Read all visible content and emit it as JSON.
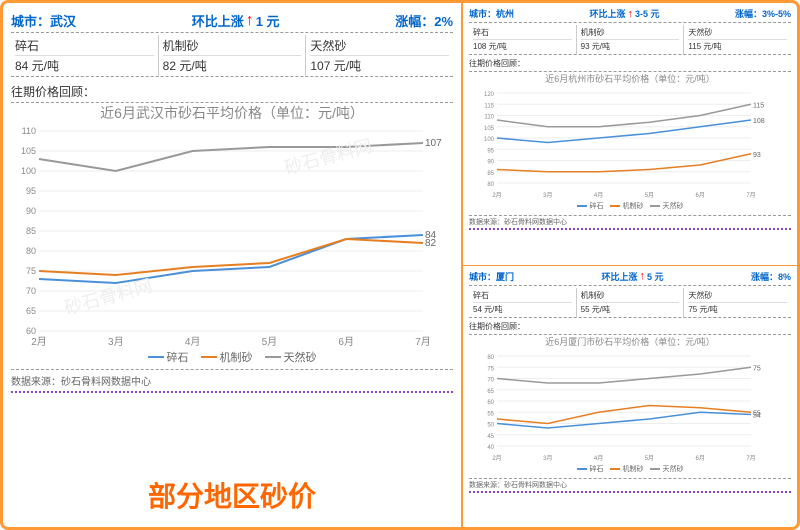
{
  "bigTitle": "部分地区砂价",
  "watermark": "砂石骨料网",
  "labels": {
    "city": "城市：",
    "change": "环比上涨",
    "rate": "涨幅：",
    "history": "往期价格回顾：",
    "source": "数据来源：砂石骨料网数据中心",
    "unit": "元/吨"
  },
  "months": [
    "2月",
    "3月",
    "4月",
    "5月",
    "6月",
    "7月"
  ],
  "series": [
    {
      "name": "碎石",
      "color": "#4a90d9"
    },
    {
      "name": "机制砂",
      "color": "#e67e22"
    },
    {
      "name": "天然砂",
      "color": "#999999"
    }
  ],
  "panels": [
    {
      "id": "wuhan",
      "city": "武汉",
      "change": "1 元",
      "rate": "2%",
      "large": true,
      "prices": [
        {
          "n": "碎石",
          "v": "84 元/吨"
        },
        {
          "n": "机制砂",
          "v": "82 元/吨"
        },
        {
          "n": "天然砂",
          "v": "107 元/吨"
        }
      ],
      "chartTitle": "近6月武汉市砂石平均价格（单位：元/吨）",
      "ylim": [
        60,
        110
      ],
      "yticks": [
        60,
        65,
        70,
        75,
        80,
        85,
        90,
        95,
        100,
        105,
        110
      ],
      "data": {
        "碎石": [
          73,
          72,
          75,
          76,
          83,
          84
        ],
        "机制砂": [
          75,
          74,
          76,
          77,
          83,
          82
        ],
        "天然砂": [
          103,
          100,
          105,
          106,
          106,
          107
        ]
      },
      "endLabels": {
        "碎石": 84,
        "机制砂": 82,
        "天然砂": 107
      }
    },
    {
      "id": "hangzhou",
      "city": "杭州",
      "change": "3-5 元",
      "rate": "3%-5%",
      "large": false,
      "prices": [
        {
          "n": "碎石",
          "v": "108 元/吨"
        },
        {
          "n": "机制砂",
          "v": "93 元/吨"
        },
        {
          "n": "天然砂",
          "v": "115 元/吨"
        }
      ],
      "chartTitle": "近6月杭州市砂石平均价格（单位：元/吨）",
      "ylim": [
        80,
        120
      ],
      "yticks": [
        80,
        85,
        90,
        95,
        100,
        105,
        110,
        115,
        120
      ],
      "data": {
        "碎石": [
          100,
          98,
          100,
          102,
          105,
          108
        ],
        "机制砂": [
          86,
          85,
          85,
          86,
          88,
          93
        ],
        "天然砂": [
          108,
          105,
          105,
          107,
          110,
          115
        ]
      },
      "endLabels": {
        "碎石": 108,
        "机制砂": 93,
        "天然砂": 115
      }
    },
    {
      "id": "xiamen",
      "city": "厦门",
      "change": "5 元",
      "rate": "8%",
      "large": false,
      "prices": [
        {
          "n": "碎石",
          "v": "54 元/吨"
        },
        {
          "n": "机制砂",
          "v": "55 元/吨"
        },
        {
          "n": "天然砂",
          "v": "75 元/吨"
        }
      ],
      "chartTitle": "近6月厦门市砂石平均价格（单位：元/吨）",
      "ylim": [
        40,
        80
      ],
      "yticks": [
        40,
        45,
        50,
        55,
        60,
        65,
        70,
        75,
        80
      ],
      "data": {
        "碎石": [
          50,
          48,
          50,
          52,
          55,
          54
        ],
        "机制砂": [
          52,
          50,
          55,
          58,
          57,
          55
        ],
        "天然砂": [
          70,
          68,
          68,
          70,
          72,
          75
        ]
      },
      "endLabels": {
        "碎石": 54,
        "机制砂": 55,
        "天然砂": 75
      }
    }
  ]
}
